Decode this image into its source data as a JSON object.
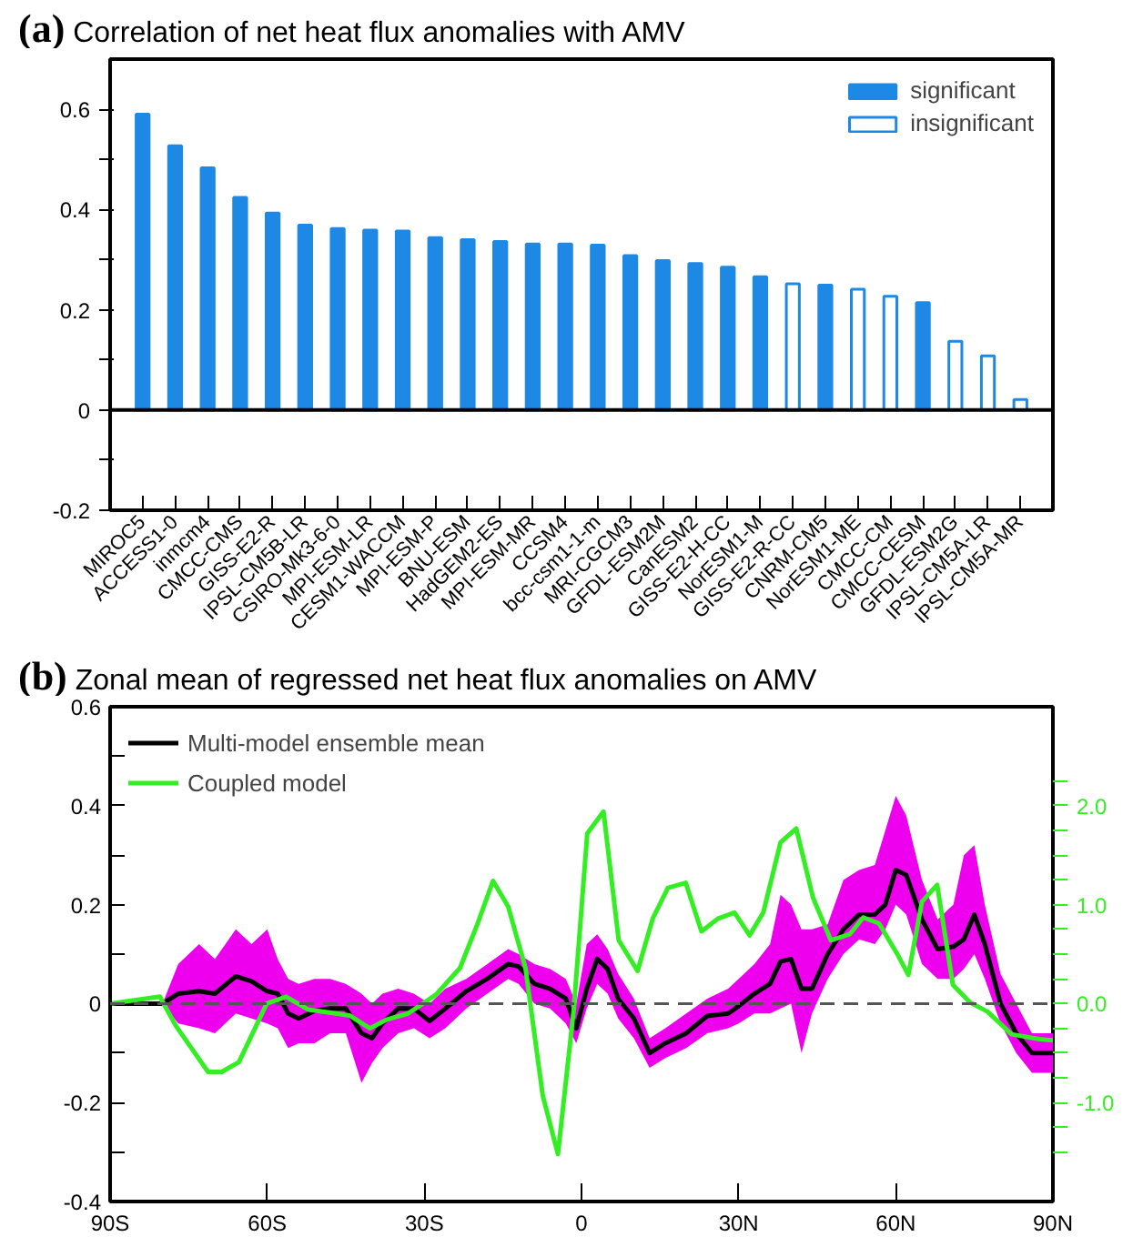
{
  "chart_data": [
    {
      "type": "bar",
      "title": "Correlation of net heat flux anomalies with AMV",
      "annotations": [
        "(a)"
      ],
      "categories": [
        "MIROC5",
        "ACCESS1-0",
        "inmcm4",
        "CMCC-CMS",
        "GISS-E2-R",
        "IPSL-CM5B-LR",
        "CSIRO-Mk3-6-0",
        "MPI-ESM-LR",
        "CESM1-WACCM",
        "MPI-ESM-P",
        "BNU-ESM",
        "HadGEM2-ES",
        "MPI-ESM-MR",
        "CCSM4",
        "bcc-csm1-1-m",
        "MRI-CGCM3",
        "GFDL-ESM2M",
        "CanESM2",
        "GISS-E2-H-CC",
        "NorESM1-M",
        "GISS-E2-R-CC",
        "CNRM-CM5",
        "NorESM1-ME",
        "CMCC-CM",
        "CMCC-CESM",
        "GFDL-ESM2G",
        "IPSL-CM5A-LR",
        "IPSL-CM5A-MR"
      ],
      "series": [
        {
          "name": "significant",
          "color": "#1e88e5",
          "values": [
            0.59,
            0.527,
            0.483,
            0.424,
            0.393,
            0.369,
            0.362,
            0.359,
            0.357,
            0.344,
            0.34,
            0.336,
            0.331,
            0.331,
            0.329,
            0.308,
            0.298,
            0.292,
            0.285,
            0.266,
            null,
            0.249,
            null,
            null,
            0.214,
            null,
            null,
            null
          ]
        },
        {
          "name": "insignificant",
          "color": "#1e88e5",
          "values": [
            null,
            null,
            null,
            null,
            null,
            null,
            null,
            null,
            null,
            null,
            null,
            null,
            null,
            null,
            null,
            null,
            null,
            null,
            null,
            null,
            0.252,
            null,
            0.241,
            0.227,
            null,
            0.137,
            0.108,
            0.021
          ]
        }
      ],
      "ylim": [
        -0.2,
        0.7
      ],
      "yticks": [
        -0.2,
        {
          "value": -0.1,
          "label": null
        },
        0,
        {
          "value": 0.1,
          "label": null
        },
        0.2,
        {
          "value": 0.3,
          "label": null
        },
        0.4,
        {
          "value": 0.5,
          "label": null
        },
        0.6
      ],
      "ref_lines": [
        {
          "axis": "y",
          "value": 0,
          "label": null,
          "color": "#000000",
          "line_style": "solid"
        }
      ],
      "grid": false,
      "legend": "top right"
    },
    {
      "type": "line",
      "title": "Zonal mean of regressed net heat flux anomalies on AMV",
      "annotations": [
        "(b)"
      ],
      "series": [
        {
          "name": "Multi-model ensemble mean",
          "color": "#000000",
          "x": [
            -90,
            -80,
            -77,
            -73,
            -70,
            -66,
            -63,
            -60,
            -58,
            -56,
            -54,
            -51,
            -48,
            -45,
            -42,
            -40,
            -38,
            -35,
            -32,
            -29,
            -26,
            -22,
            -18,
            -14,
            -12,
            -9,
            -6,
            -3,
            -1,
            1,
            3,
            5,
            7,
            10,
            13,
            16,
            20,
            24,
            28,
            30,
            33,
            36,
            38,
            40,
            42,
            44,
            47,
            50,
            53,
            56,
            58,
            60,
            62,
            65,
            68,
            71,
            73,
            75,
            77,
            80,
            83,
            86,
            90
          ],
          "values": [
            0,
            0,
            0.02,
            0.025,
            0.02,
            0.055,
            0.045,
            0.025,
            0.02,
            -0.02,
            -0.03,
            -0.015,
            -0.01,
            -0.01,
            -0.06,
            -0.07,
            -0.04,
            -0.01,
            -0.01,
            -0.035,
            -0.01,
            0.025,
            0.05,
            0.08,
            0.075,
            0.04,
            0.03,
            0.01,
            -0.05,
            0.03,
            0.09,
            0.07,
            0.01,
            -0.03,
            -0.1,
            -0.08,
            -0.06,
            -0.025,
            -0.02,
            -0.005,
            0.02,
            0.04,
            0.085,
            0.09,
            0.03,
            0.03,
            0.1,
            0.15,
            0.18,
            0.18,
            0.2,
            0.27,
            0.26,
            0.17,
            0.11,
            0.115,
            0.13,
            0.18,
            0.12,
            0.0,
            -0.06,
            -0.1,
            -0.1
          ],
          "lower": [
            0,
            0,
            -0.04,
            -0.05,
            -0.06,
            -0.02,
            -0.03,
            -0.04,
            -0.05,
            -0.09,
            -0.08,
            -0.08,
            -0.06,
            -0.06,
            -0.16,
            -0.12,
            -0.09,
            -0.06,
            -0.05,
            -0.07,
            -0.05,
            -0.01,
            0.02,
            0.05,
            0.04,
            0.0,
            -0.01,
            -0.04,
            -0.08,
            -0.01,
            0.04,
            0.02,
            -0.03,
            -0.07,
            -0.13,
            -0.11,
            -0.09,
            -0.06,
            -0.05,
            -0.04,
            -0.02,
            -0.02,
            -0.01,
            0.0,
            -0.1,
            -0.02,
            0.05,
            0.1,
            0.13,
            0.12,
            0.15,
            0.2,
            0.18,
            0.08,
            0.05,
            0.05,
            0.07,
            0.1,
            0.05,
            -0.04,
            -0.1,
            -0.14,
            -0.14
          ],
          "upper": [
            0,
            0,
            0.08,
            0.12,
            0.09,
            0.15,
            0.12,
            0.15,
            0.09,
            0.05,
            0.04,
            0.05,
            0.05,
            0.04,
            0.02,
            0.0,
            0.02,
            0.03,
            0.02,
            0.0,
            0.03,
            0.05,
            0.08,
            0.11,
            0.1,
            0.08,
            0.07,
            0.05,
            0.0,
            0.12,
            0.14,
            0.11,
            0.06,
            0.01,
            -0.07,
            -0.05,
            -0.02,
            0.01,
            0.03,
            0.05,
            0.08,
            0.12,
            0.22,
            0.2,
            0.15,
            0.15,
            0.16,
            0.25,
            0.27,
            0.28,
            0.35,
            0.42,
            0.38,
            0.25,
            0.17,
            0.2,
            0.3,
            0.32,
            0.2,
            0.06,
            0.0,
            -0.06,
            -0.06
          ]
        },
        {
          "name": "Coupled model",
          "color": "#33ee22",
          "axis": "y2",
          "x": [
            -90,
            -80.5,
            -77.5,
            -71.3,
            -68.7,
            -65.4,
            -60.1,
            -56.4,
            -52.2,
            -46.9,
            -44.3,
            -40.4,
            -37.1,
            -33.1,
            -27.8,
            -23.2,
            -19.9,
            -16.9,
            -14,
            -10.7,
            -7.4,
            -4.5,
            -1.5,
            1.1,
            4.2,
            7.1,
            10.7,
            13.6,
            16.5,
            19.9,
            22.9,
            26.1,
            29.2,
            32.1,
            34.7,
            38,
            41,
            44.2,
            47.6,
            51.2,
            53.8,
            56.8,
            60.4,
            62.4,
            65,
            67.9,
            70.9,
            74.2,
            77.5,
            82.1,
            87.4,
            90
          ],
          "values": [
            0,
            0.07,
            -0.22,
            -0.69,
            -0.69,
            -0.59,
            0.0,
            0.07,
            -0.06,
            -0.1,
            -0.12,
            -0.25,
            -0.16,
            -0.1,
            0.09,
            0.36,
            0.8,
            1.24,
            0.98,
            0.36,
            -0.93,
            -1.52,
            -0.07,
            1.72,
            1.94,
            0.64,
            0.33,
            0.86,
            1.17,
            1.22,
            0.73,
            0.86,
            0.92,
            0.69,
            0.92,
            1.63,
            1.77,
            1.07,
            0.64,
            0.7,
            0.87,
            0.81,
            0.49,
            0.29,
            1.03,
            1.2,
            0.19,
            0.01,
            -0.08,
            -0.31,
            -0.36,
            -0.37
          ]
        }
      ],
      "xlim": [
        -90,
        90
      ],
      "xticks": [
        {
          "value": -90,
          "label": "90S"
        },
        {
          "value": -60,
          "label": "60S"
        },
        {
          "value": -30,
          "label": "30S"
        },
        0,
        {
          "value": 30,
          "label": "30N"
        },
        {
          "value": 60,
          "label": "60N"
        },
        {
          "value": 90,
          "label": "90N"
        }
      ],
      "ylim": [
        -0.4,
        0.6
      ],
      "yticks": [
        -0.4,
        {
          "value": -0.3,
          "label": null
        },
        -0.2,
        {
          "value": -0.1,
          "label": null
        },
        0,
        {
          "value": 0.1,
          "label": null
        },
        0.2,
        {
          "value": 0.3,
          "label": null
        },
        0.4,
        {
          "value": 0.5,
          "label": null
        },
        0.6
      ],
      "y2lim": [
        -2.0,
        3.0
      ],
      "y2ticks": [
        {
          "value": -1.5,
          "label": null
        },
        {
          "value": -1.25,
          "label": null
        },
        {
          "value": -1.0,
          "label": "-1.0"
        },
        {
          "value": -0.75,
          "label": null
        },
        {
          "value": -0.5,
          "label": null
        },
        {
          "value": -0.25,
          "label": null
        },
        {
          "value": 0.0,
          "label": "0.0"
        },
        {
          "value": 0.25,
          "label": null
        },
        {
          "value": 0.5,
          "label": null
        },
        {
          "value": 0.75,
          "label": null
        },
        {
          "value": 1.0,
          "label": "1.0"
        },
        {
          "value": 1.25,
          "label": null
        },
        {
          "value": 1.5,
          "label": null
        },
        {
          "value": 1.75,
          "label": null
        },
        {
          "value": 2.0,
          "label": "2.0"
        },
        {
          "value": 2.25,
          "label": null
        }
      ],
      "ref_lines": [
        {
          "axis": "y",
          "value": 0,
          "label": null,
          "color": "#555555",
          "line_style": "dashed"
        }
      ],
      "grid": false,
      "legend": "top left",
      "line_style": "solid",
      "marker": "none"
    }
  ]
}
